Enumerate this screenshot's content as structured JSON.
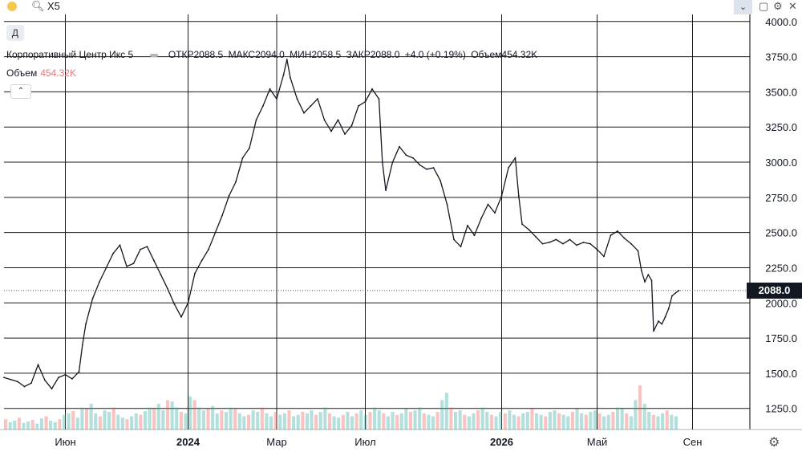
{
  "toolbar": {
    "symbol": "X5",
    "search_icon": "search-icon",
    "dropdown_icon": "chevron-down-icon",
    "window_icons": [
      "square-icon",
      "gear-icon",
      "close-icon"
    ]
  },
  "interval_button": "Д",
  "legend": {
    "name": "Корпоративный Центр Икс 5",
    "open": "ОТКР2088.5",
    "high": "МАКС2094.0",
    "low": "МИН2058.5",
    "close": "ЗАКР2088.0",
    "change": "+4.0 (+0.19%)",
    "volume": "Объем454.32K"
  },
  "volume_legend": {
    "label": "Объем",
    "value": "454.32K"
  },
  "current_price_label": "2088.0",
  "colors": {
    "up": "#26a69a",
    "down": "#ef5350",
    "line": "#131722",
    "grid": "#1a1a1a"
  },
  "chart_data": {
    "type": "line",
    "title": "",
    "xlabel": "",
    "ylabel": "",
    "ylim": [
      1100,
      4050
    ],
    "y_ticks": [
      4000,
      3750,
      3500,
      3250,
      3000,
      2750,
      2500,
      2250,
      2000,
      1750,
      1500,
      1250
    ],
    "y_tick_labels": [
      "4000.0",
      "3750.0",
      "3500.0",
      "3250.0",
      "3000.0",
      "2750.0",
      "2500.0",
      "2250.0",
      "2000.0",
      "1750.0",
      "1500.0",
      "1250.0"
    ],
    "x_tick_labels": [
      "Июн",
      "2024",
      "Мар",
      "Июл",
      "2026",
      "Май",
      "Сен"
    ],
    "x_tick_pos": [
      0.09,
      0.27,
      0.4,
      0.53,
      0.73,
      0.87,
      1.01
    ],
    "current_price": 2088.0,
    "series": [
      {
        "values": [
          [
            0.0,
            1470
          ],
          [
            0.01,
            1455
          ],
          [
            0.02,
            1440
          ],
          [
            0.03,
            1405
          ],
          [
            0.04,
            1430
          ],
          [
            0.05,
            1560
          ],
          [
            0.06,
            1450
          ],
          [
            0.07,
            1390
          ],
          [
            0.08,
            1470
          ],
          [
            0.09,
            1490
          ],
          [
            0.1,
            1460
          ],
          [
            0.11,
            1510
          ],
          [
            0.115,
            1700
          ],
          [
            0.12,
            1850
          ],
          [
            0.13,
            2030
          ],
          [
            0.14,
            2150
          ],
          [
            0.15,
            2250
          ],
          [
            0.16,
            2350
          ],
          [
            0.17,
            2410
          ],
          [
            0.18,
            2260
          ],
          [
            0.19,
            2280
          ],
          [
            0.2,
            2380
          ],
          [
            0.21,
            2400
          ],
          [
            0.22,
            2300
          ],
          [
            0.23,
            2200
          ],
          [
            0.24,
            2100
          ],
          [
            0.25,
            1990
          ],
          [
            0.26,
            1900
          ],
          [
            0.27,
            2000
          ],
          [
            0.28,
            2210
          ],
          [
            0.29,
            2300
          ],
          [
            0.3,
            2380
          ],
          [
            0.31,
            2500
          ],
          [
            0.32,
            2620
          ],
          [
            0.33,
            2760
          ],
          [
            0.34,
            2860
          ],
          [
            0.35,
            3030
          ],
          [
            0.36,
            3100
          ],
          [
            0.37,
            3300
          ],
          [
            0.38,
            3400
          ],
          [
            0.39,
            3520
          ],
          [
            0.4,
            3450
          ],
          [
            0.41,
            3620
          ],
          [
            0.415,
            3730
          ],
          [
            0.42,
            3600
          ],
          [
            0.43,
            3450
          ],
          [
            0.44,
            3350
          ],
          [
            0.45,
            3400
          ],
          [
            0.46,
            3450
          ],
          [
            0.47,
            3300
          ],
          [
            0.48,
            3220
          ],
          [
            0.49,
            3300
          ],
          [
            0.5,
            3200
          ],
          [
            0.51,
            3260
          ],
          [
            0.52,
            3400
          ],
          [
            0.53,
            3430
          ],
          [
            0.54,
            3520
          ],
          [
            0.55,
            3450
          ],
          [
            0.555,
            3000
          ],
          [
            0.56,
            2800
          ],
          [
            0.57,
            3000
          ],
          [
            0.58,
            3110
          ],
          [
            0.59,
            3050
          ],
          [
            0.6,
            3030
          ],
          [
            0.61,
            2980
          ],
          [
            0.62,
            2950
          ],
          [
            0.63,
            2960
          ],
          [
            0.64,
            2870
          ],
          [
            0.65,
            2700
          ],
          [
            0.66,
            2450
          ],
          [
            0.67,
            2400
          ],
          [
            0.68,
            2550
          ],
          [
            0.69,
            2480
          ],
          [
            0.7,
            2600
          ],
          [
            0.71,
            2700
          ],
          [
            0.72,
            2640
          ],
          [
            0.73,
            2760
          ],
          [
            0.74,
            2960
          ],
          [
            0.75,
            3030
          ],
          [
            0.755,
            2760
          ],
          [
            0.76,
            2560
          ],
          [
            0.77,
            2520
          ],
          [
            0.78,
            2470
          ],
          [
            0.79,
            2420
          ],
          [
            0.8,
            2430
          ],
          [
            0.81,
            2450
          ],
          [
            0.82,
            2420
          ],
          [
            0.83,
            2450
          ],
          [
            0.84,
            2410
          ],
          [
            0.85,
            2430
          ],
          [
            0.86,
            2420
          ],
          [
            0.87,
            2380
          ],
          [
            0.88,
            2330
          ],
          [
            0.89,
            2480
          ],
          [
            0.9,
            2510
          ],
          [
            0.91,
            2460
          ],
          [
            0.92,
            2420
          ],
          [
            0.93,
            2370
          ],
          [
            0.935,
            2230
          ],
          [
            0.94,
            2150
          ],
          [
            0.945,
            2200
          ],
          [
            0.95,
            2160
          ],
          [
            0.953,
            1800
          ],
          [
            0.96,
            1870
          ],
          [
            0.965,
            1850
          ],
          [
            0.97,
            1900
          ],
          [
            0.975,
            1960
          ],
          [
            0.98,
            2050
          ],
          [
            0.985,
            2070
          ],
          [
            0.99,
            2088
          ]
        ]
      }
    ],
    "volume": [
      14,
      10,
      12,
      16,
      9,
      11,
      13,
      8,
      15,
      18,
      12,
      10,
      14,
      20,
      22,
      25,
      16,
      30,
      28,
      35,
      22,
      18,
      26,
      24,
      30,
      20,
      16,
      14,
      18,
      22,
      20,
      25,
      30,
      28,
      35,
      26,
      40,
      38,
      30,
      24,
      22,
      45,
      40,
      30,
      26,
      28,
      32,
      22,
      26,
      24,
      30,
      28,
      22,
      18,
      20,
      26,
      24,
      30,
      22,
      18,
      24,
      20,
      22,
      26,
      18,
      20,
      24,
      22,
      26,
      20,
      24,
      30,
      22,
      18,
      16,
      20,
      24,
      18,
      22,
      26,
      20,
      24,
      30,
      26,
      22,
      18,
      24,
      20,
      22,
      28,
      24,
      26,
      30,
      22,
      20,
      18,
      24,
      40,
      50,
      30,
      24,
      26,
      20,
      18,
      22,
      26,
      30,
      24,
      20,
      18,
      24,
      22,
      26,
      20,
      18,
      22,
      24,
      28,
      22,
      20,
      18,
      24,
      26,
      22,
      20,
      18,
      24,
      28,
      22,
      20,
      24,
      26,
      22,
      18,
      20,
      24,
      30,
      28,
      22,
      18,
      40,
      60,
      35,
      24,
      20,
      18,
      22,
      26,
      20,
      18
    ]
  }
}
